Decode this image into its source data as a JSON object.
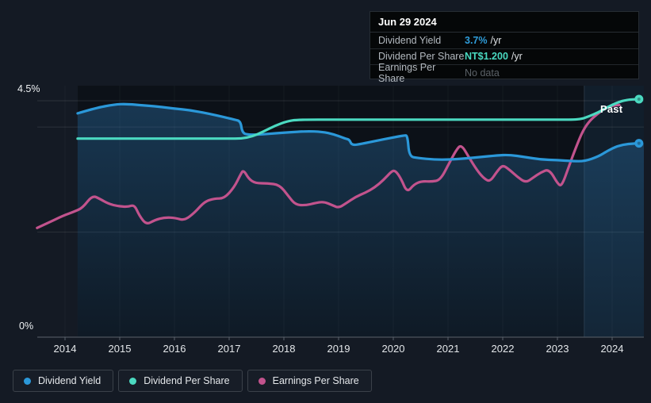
{
  "tooltip": {
    "date": "Jun 29 2024",
    "rows": [
      {
        "label": "Dividend Yield",
        "value": "3.7%",
        "suffix": "/yr",
        "value_color": "#2f9dda"
      },
      {
        "label": "Dividend Per Share",
        "value": "NT$1.200",
        "suffix": "/yr",
        "value_color": "#49d9c0"
      },
      {
        "label": "Earnings Per Share",
        "value": "No data",
        "suffix": "",
        "value_color": "#5b6167"
      }
    ]
  },
  "legend": {
    "items": [
      {
        "label": "Dividend Yield",
        "color": "#2b98d9"
      },
      {
        "label": "Dividend Per Share",
        "color": "#4bd9c0"
      },
      {
        "label": "Earnings Per Share",
        "color": "#c2538d"
      }
    ]
  },
  "colors": {
    "background": "#141a24",
    "plot_background": "#0c1118",
    "dividend_yield": "#2b98d9",
    "dividend_per_share": "#4bd9c0",
    "earnings_per_share": "#c2538d",
    "past_band": "rgba(73,151,219,0.10)"
  },
  "chart_data": {
    "type": "area",
    "title": "Dividend yield and payments history",
    "x_ticks": [
      2014,
      2015,
      2016,
      2017,
      2018,
      2019,
      2020,
      2021,
      2022,
      2023,
      2024
    ],
    "xlim": [
      2013.45,
      2024.6
    ],
    "ylim_pct": [
      0,
      4.5
    ],
    "y_axis_top_label": "4.5%",
    "y_axis_bottom_label": "0%",
    "y_gridlines_pct": [
      4.5,
      4.0,
      2.0
    ],
    "grid": true,
    "legend_position": "bottom-left",
    "past_band_start": 2023.49,
    "past_label": "Past",
    "y_units": "position on the 0-4.5% dividend-yield axis (DPS and EPS lines drawn on hidden scales)",
    "end_values": {
      "dividend_yield": "3.7% /yr",
      "dividend_per_share": "NT$1.200 /yr",
      "earnings_per_share": "No data"
    },
    "series": [
      {
        "name": "Dividend Yield",
        "color": "#2b98d9",
        "area": true,
        "end_dot": true,
        "points": [
          [
            2014.23,
            4.26
          ],
          [
            2014.55,
            4.36
          ],
          [
            2014.9,
            4.43
          ],
          [
            2015.13,
            4.44
          ],
          [
            2015.45,
            4.41
          ],
          [
            2015.7,
            4.39
          ],
          [
            2016.0,
            4.35
          ],
          [
            2016.29,
            4.32
          ],
          [
            2016.6,
            4.26
          ],
          [
            2016.9,
            4.19
          ],
          [
            2017.1,
            4.14
          ],
          [
            2017.21,
            4.11
          ],
          [
            2017.24,
            3.88
          ],
          [
            2017.38,
            3.85
          ],
          [
            2017.6,
            3.86
          ],
          [
            2017.85,
            3.88
          ],
          [
            2018.1,
            3.9
          ],
          [
            2018.4,
            3.92
          ],
          [
            2018.7,
            3.91
          ],
          [
            2018.92,
            3.86
          ],
          [
            2019.12,
            3.78
          ],
          [
            2019.2,
            3.76
          ],
          [
            2019.24,
            3.65
          ],
          [
            2019.42,
            3.68
          ],
          [
            2019.7,
            3.74
          ],
          [
            2019.99,
            3.8
          ],
          [
            2020.2,
            3.84
          ],
          [
            2020.26,
            3.84
          ],
          [
            2020.29,
            3.44
          ],
          [
            2020.45,
            3.41
          ],
          [
            2020.75,
            3.38
          ],
          [
            2021.03,
            3.38
          ],
          [
            2021.3,
            3.4
          ],
          [
            2021.6,
            3.43
          ],
          [
            2021.9,
            3.46
          ],
          [
            2022.12,
            3.47
          ],
          [
            2022.4,
            3.43
          ],
          [
            2022.7,
            3.38
          ],
          [
            2023.0,
            3.37
          ],
          [
            2023.28,
            3.35
          ],
          [
            2023.5,
            3.35
          ],
          [
            2023.75,
            3.44
          ],
          [
            2023.92,
            3.55
          ],
          [
            2024.1,
            3.64
          ],
          [
            2024.3,
            3.68
          ],
          [
            2024.49,
            3.69
          ]
        ]
      },
      {
        "name": "Dividend Per Share",
        "color": "#4bd9c0",
        "area": false,
        "end_dot": true,
        "points": [
          [
            2014.23,
            3.78
          ],
          [
            2015.0,
            3.78
          ],
          [
            2016.0,
            3.78
          ],
          [
            2017.0,
            3.78
          ],
          [
            2017.22,
            3.78
          ],
          [
            2017.42,
            3.82
          ],
          [
            2017.62,
            3.91
          ],
          [
            2017.85,
            4.03
          ],
          [
            2018.06,
            4.11
          ],
          [
            2018.25,
            4.14
          ],
          [
            2019.0,
            4.14
          ],
          [
            2020.0,
            4.14
          ],
          [
            2021.0,
            4.14
          ],
          [
            2022.0,
            4.14
          ],
          [
            2023.0,
            4.14
          ],
          [
            2023.4,
            4.14
          ],
          [
            2023.57,
            4.2
          ],
          [
            2023.75,
            4.28
          ],
          [
            2023.92,
            4.38
          ],
          [
            2024.1,
            4.47
          ],
          [
            2024.27,
            4.52
          ],
          [
            2024.49,
            4.53
          ]
        ]
      },
      {
        "name": "Earnings Per Share",
        "color": "#c2538d",
        "area": false,
        "end_dot": false,
        "points": [
          [
            2013.49,
            2.08
          ],
          [
            2013.68,
            2.17
          ],
          [
            2013.96,
            2.31
          ],
          [
            2014.17,
            2.39
          ],
          [
            2014.32,
            2.46
          ],
          [
            2014.5,
            2.7
          ],
          [
            2014.64,
            2.63
          ],
          [
            2014.79,
            2.54
          ],
          [
            2014.98,
            2.49
          ],
          [
            2015.15,
            2.48
          ],
          [
            2015.27,
            2.52
          ],
          [
            2015.36,
            2.31
          ],
          [
            2015.49,
            2.14
          ],
          [
            2015.64,
            2.23
          ],
          [
            2015.82,
            2.28
          ],
          [
            2016.02,
            2.27
          ],
          [
            2016.18,
            2.22
          ],
          [
            2016.37,
            2.37
          ],
          [
            2016.55,
            2.58
          ],
          [
            2016.73,
            2.64
          ],
          [
            2016.91,
            2.64
          ],
          [
            2017.09,
            2.85
          ],
          [
            2017.2,
            3.08
          ],
          [
            2017.26,
            3.19
          ],
          [
            2017.36,
            3.01
          ],
          [
            2017.48,
            2.93
          ],
          [
            2017.7,
            2.93
          ],
          [
            2017.92,
            2.9
          ],
          [
            2018.08,
            2.69
          ],
          [
            2018.21,
            2.52
          ],
          [
            2018.4,
            2.51
          ],
          [
            2018.56,
            2.55
          ],
          [
            2018.73,
            2.58
          ],
          [
            2018.89,
            2.51
          ],
          [
            2019.0,
            2.46
          ],
          [
            2019.14,
            2.55
          ],
          [
            2019.31,
            2.67
          ],
          [
            2019.49,
            2.75
          ],
          [
            2019.66,
            2.85
          ],
          [
            2019.82,
            2.99
          ],
          [
            2019.97,
            3.16
          ],
          [
            2020.04,
            3.17
          ],
          [
            2020.14,
            3.02
          ],
          [
            2020.25,
            2.75
          ],
          [
            2020.38,
            2.91
          ],
          [
            2020.52,
            2.97
          ],
          [
            2020.7,
            2.96
          ],
          [
            2020.86,
            2.99
          ],
          [
            2021.02,
            3.31
          ],
          [
            2021.15,
            3.56
          ],
          [
            2021.24,
            3.67
          ],
          [
            2021.38,
            3.43
          ],
          [
            2021.54,
            3.16
          ],
          [
            2021.67,
            3.01
          ],
          [
            2021.77,
            2.96
          ],
          [
            2021.9,
            3.16
          ],
          [
            2022.0,
            3.28
          ],
          [
            2022.12,
            3.19
          ],
          [
            2022.27,
            3.05
          ],
          [
            2022.42,
            2.94
          ],
          [
            2022.55,
            3.03
          ],
          [
            2022.7,
            3.14
          ],
          [
            2022.85,
            3.2
          ],
          [
            2023.01,
            2.91
          ],
          [
            2023.08,
            2.88
          ],
          [
            2023.2,
            3.22
          ],
          [
            2023.34,
            3.62
          ],
          [
            2023.47,
            3.94
          ],
          [
            2023.59,
            4.12
          ],
          [
            2023.72,
            4.24
          ],
          [
            2023.86,
            4.35
          ],
          [
            2024.0,
            4.41
          ],
          [
            2024.13,
            4.42
          ]
        ]
      }
    ]
  }
}
